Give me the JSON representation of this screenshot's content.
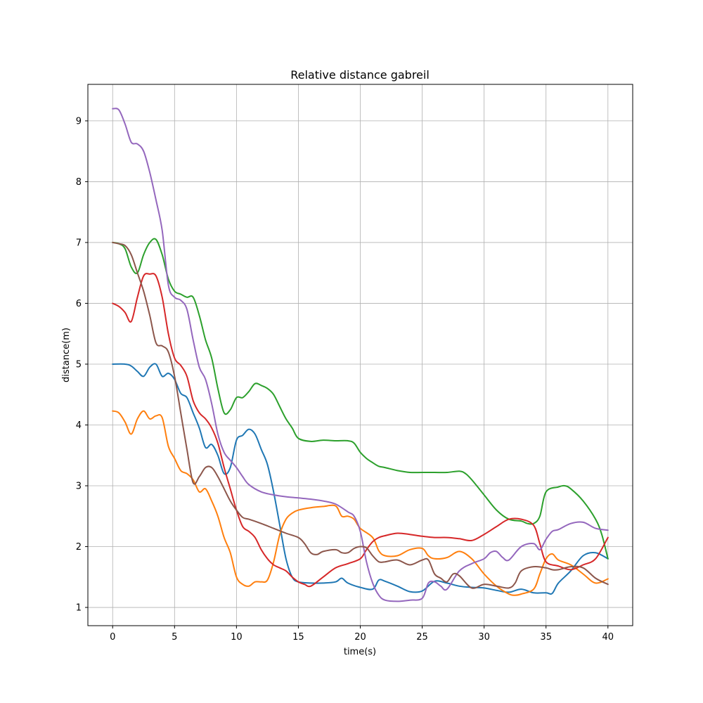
{
  "chart_data": {
    "type": "line",
    "title": "Relative distance gabreil",
    "xlabel": "time(s)",
    "ylabel": "distance(m)",
    "xlim": [
      -2,
      42
    ],
    "ylim": [
      0.7,
      9.6
    ],
    "x_ticks": [
      0,
      5,
      10,
      15,
      20,
      25,
      30,
      35,
      40
    ],
    "y_ticks": [
      1,
      2,
      3,
      4,
      5,
      6,
      7,
      8,
      9
    ],
    "grid": true,
    "series": [
      {
        "color": "#1f77b4",
        "x": [
          0,
          1,
          1.5,
          2,
          2.5,
          3,
          3.5,
          4,
          4.5,
          5,
          5.5,
          6,
          6.5,
          7,
          7.5,
          8,
          8.5,
          9,
          9.5,
          10,
          10.5,
          11,
          11.5,
          12,
          12.5,
          13,
          13.5,
          14,
          14.5,
          15,
          16,
          17,
          18,
          18.5,
          19,
          20,
          21,
          21.5,
          22,
          23,
          24,
          25,
          26,
          27,
          28,
          29,
          30,
          31,
          32,
          33,
          34,
          35,
          35.5,
          36,
          37,
          38,
          39,
          40
        ],
        "y": [
          5.0,
          5.0,
          4.97,
          4.88,
          4.8,
          4.95,
          5.0,
          4.8,
          4.85,
          4.75,
          4.52,
          4.45,
          4.2,
          3.95,
          3.63,
          3.68,
          3.5,
          3.2,
          3.3,
          3.75,
          3.83,
          3.93,
          3.85,
          3.6,
          3.35,
          2.9,
          2.35,
          1.8,
          1.5,
          1.42,
          1.4,
          1.4,
          1.42,
          1.48,
          1.4,
          1.33,
          1.3,
          1.45,
          1.43,
          1.35,
          1.26,
          1.27,
          1.43,
          1.4,
          1.35,
          1.33,
          1.32,
          1.28,
          1.25,
          1.3,
          1.24,
          1.24,
          1.23,
          1.4,
          1.6,
          1.85,
          1.9,
          1.8
        ]
      },
      {
        "color": "#ff7f0e",
        "x": [
          0,
          0.5,
          1,
          1.5,
          2,
          2.5,
          3,
          3.5,
          4,
          4.5,
          5,
          5.5,
          6,
          6.5,
          7,
          7.5,
          8,
          8.5,
          9,
          9.5,
          10,
          10.5,
          11,
          11.5,
          12,
          12.5,
          13,
          13.5,
          14,
          14.5,
          15,
          16,
          17,
          18,
          18.5,
          19,
          19.5,
          20,
          21,
          21.5,
          22,
          23,
          24,
          25,
          25.5,
          26,
          27,
          28,
          29,
          30,
          31,
          32,
          32.5,
          33,
          34,
          34.5,
          35,
          35.5,
          36,
          37,
          38,
          39,
          40
        ],
        "y": [
          4.23,
          4.2,
          4.05,
          3.85,
          4.1,
          4.23,
          4.1,
          4.15,
          4.12,
          3.65,
          3.45,
          3.25,
          3.2,
          3.1,
          2.9,
          2.95,
          2.75,
          2.5,
          2.15,
          1.9,
          1.5,
          1.38,
          1.35,
          1.42,
          1.42,
          1.45,
          1.75,
          2.2,
          2.45,
          2.55,
          2.6,
          2.64,
          2.66,
          2.67,
          2.5,
          2.5,
          2.45,
          2.3,
          2.15,
          1.93,
          1.85,
          1.85,
          1.95,
          1.97,
          1.85,
          1.8,
          1.82,
          1.92,
          1.8,
          1.55,
          1.35,
          1.22,
          1.2,
          1.22,
          1.3,
          1.55,
          1.8,
          1.88,
          1.78,
          1.7,
          1.55,
          1.4,
          1.47
        ]
      },
      {
        "color": "#2ca02c",
        "x": [
          0,
          0.5,
          1,
          1.5,
          2,
          2.5,
          3,
          3.5,
          4,
          4.5,
          5,
          5.5,
          6,
          6.5,
          7,
          7.5,
          8,
          8.5,
          9,
          9.5,
          10,
          10.5,
          11,
          11.5,
          12,
          12.5,
          13,
          13.5,
          14,
          14.5,
          15,
          16,
          17,
          18,
          19,
          19.5,
          20,
          20.5,
          21,
          21.5,
          22,
          23,
          24,
          25,
          26,
          27,
          28,
          28.5,
          29,
          30,
          31,
          32,
          33,
          33.5,
          34,
          34.5,
          35,
          36,
          36.5,
          37,
          38,
          39,
          39.5,
          40
        ],
        "y": [
          7.0,
          6.98,
          6.9,
          6.6,
          6.5,
          6.8,
          7.0,
          7.05,
          6.8,
          6.4,
          6.2,
          6.15,
          6.1,
          6.1,
          5.8,
          5.4,
          5.1,
          4.6,
          4.2,
          4.25,
          4.45,
          4.45,
          4.55,
          4.68,
          4.65,
          4.6,
          4.5,
          4.3,
          4.1,
          3.95,
          3.78,
          3.73,
          3.75,
          3.74,
          3.74,
          3.7,
          3.55,
          3.45,
          3.38,
          3.32,
          3.3,
          3.25,
          3.22,
          3.22,
          3.22,
          3.22,
          3.24,
          3.2,
          3.1,
          2.85,
          2.6,
          2.45,
          2.42,
          2.38,
          2.38,
          2.5,
          2.9,
          2.98,
          3.0,
          2.95,
          2.75,
          2.45,
          2.2,
          1.8
        ]
      },
      {
        "color": "#d62728",
        "x": [
          0,
          0.5,
          1,
          1.5,
          2,
          2.5,
          3,
          3.5,
          4,
          4.5,
          5,
          5.5,
          6,
          6.5,
          7,
          7.5,
          8,
          8.5,
          9,
          9.5,
          10,
          10.5,
          11,
          11.5,
          12,
          12.5,
          13,
          13.5,
          14,
          14.5,
          15,
          15.5,
          16,
          17,
          18,
          19,
          20,
          20.5,
          21,
          21.5,
          22,
          23,
          24,
          25,
          26,
          27,
          28,
          29,
          30,
          31,
          32,
          33,
          34,
          34.5,
          35,
          36,
          37,
          38,
          39,
          40
        ],
        "y": [
          6.0,
          5.95,
          5.85,
          5.7,
          6.1,
          6.45,
          6.48,
          6.45,
          6.1,
          5.5,
          5.1,
          4.98,
          4.8,
          4.4,
          4.2,
          4.1,
          3.95,
          3.7,
          3.3,
          2.95,
          2.6,
          2.33,
          2.25,
          2.15,
          1.95,
          1.8,
          1.7,
          1.65,
          1.6,
          1.5,
          1.42,
          1.38,
          1.35,
          1.5,
          1.65,
          1.72,
          1.8,
          1.95,
          2.08,
          2.15,
          2.18,
          2.22,
          2.2,
          2.17,
          2.15,
          2.15,
          2.13,
          2.1,
          2.2,
          2.33,
          2.45,
          2.45,
          2.35,
          2.05,
          1.75,
          1.68,
          1.62,
          1.7,
          1.8,
          2.15
        ]
      },
      {
        "color": "#9467bd",
        "x": [
          0,
          0.5,
          1,
          1.5,
          2,
          2.5,
          3,
          3.5,
          4,
          4.5,
          5,
          5.5,
          6,
          6.5,
          7,
          7.5,
          8,
          8.5,
          9,
          9.5,
          10,
          10.5,
          11,
          12,
          13,
          14,
          15,
          16,
          17,
          18,
          19,
          19.5,
          20,
          20.5,
          21,
          21.5,
          22,
          23,
          24,
          25,
          25.5,
          26,
          26.5,
          27,
          28,
          29,
          30,
          30.5,
          31,
          31.5,
          32,
          33,
          34,
          34.5,
          35,
          35.5,
          36,
          37,
          38,
          39,
          40
        ],
        "y": [
          9.2,
          9.18,
          8.95,
          8.65,
          8.62,
          8.5,
          8.15,
          7.7,
          7.2,
          6.3,
          6.1,
          6.05,
          5.9,
          5.4,
          4.95,
          4.75,
          4.35,
          3.85,
          3.55,
          3.42,
          3.3,
          3.15,
          3.02,
          2.9,
          2.85,
          2.82,
          2.8,
          2.78,
          2.75,
          2.7,
          2.57,
          2.5,
          2.25,
          1.75,
          1.4,
          1.2,
          1.12,
          1.1,
          1.12,
          1.15,
          1.4,
          1.42,
          1.35,
          1.3,
          1.6,
          1.72,
          1.8,
          1.9,
          1.92,
          1.82,
          1.78,
          2.0,
          2.05,
          1.95,
          2.12,
          2.25,
          2.28,
          2.38,
          2.4,
          2.3,
          2.27
        ]
      },
      {
        "color": "#8c564b",
        "x": [
          0,
          0.5,
          1,
          1.5,
          2,
          2.5,
          3,
          3.5,
          4,
          4.5,
          5,
          5.5,
          6,
          6.5,
          7,
          7.5,
          8,
          8.5,
          9,
          9.5,
          10,
          10.5,
          11,
          12,
          13,
          14,
          15,
          15.5,
          16,
          16.5,
          17,
          18,
          18.5,
          19,
          19.5,
          20,
          20.5,
          21,
          21.5,
          22,
          23,
          24,
          25,
          25.5,
          26,
          26.5,
          27,
          27.5,
          28,
          29,
          30,
          31,
          32,
          32.5,
          33,
          34,
          35,
          35.5,
          36,
          37,
          38,
          39,
          40
        ],
        "y": [
          7.0,
          6.98,
          6.95,
          6.8,
          6.5,
          6.2,
          5.8,
          5.35,
          5.3,
          5.2,
          4.8,
          4.2,
          3.6,
          3.05,
          3.15,
          3.3,
          3.3,
          3.15,
          2.95,
          2.75,
          2.6,
          2.48,
          2.45,
          2.38,
          2.3,
          2.22,
          2.15,
          2.05,
          1.9,
          1.87,
          1.92,
          1.95,
          1.9,
          1.9,
          1.97,
          2.0,
          1.98,
          1.85,
          1.75,
          1.75,
          1.78,
          1.7,
          1.78,
          1.78,
          1.55,
          1.48,
          1.42,
          1.55,
          1.52,
          1.32,
          1.38,
          1.35,
          1.32,
          1.4,
          1.6,
          1.67,
          1.65,
          1.62,
          1.62,
          1.67,
          1.65,
          1.48,
          1.38
        ]
      }
    ]
  }
}
